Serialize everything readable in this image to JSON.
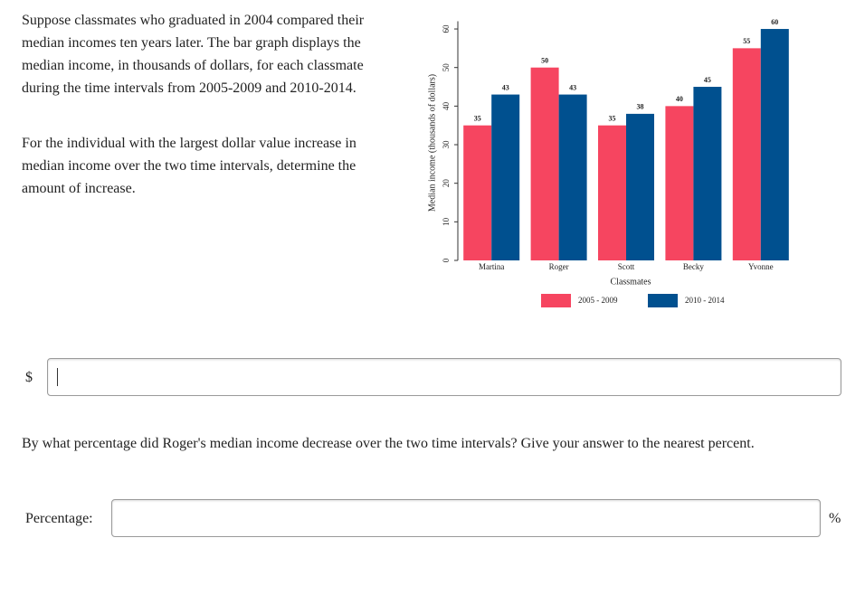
{
  "question1": {
    "paragraphs": [
      "Suppose classmates who graduated in 2004 compared their median incomes ten years later. The bar graph displays the median income, in thousands of dollars, for each classmate during the time intervals from 2005-2009 and 2010-2014.",
      "For the individual with the largest dollar value increase in median income over the two time intervals, determine the amount of increase."
    ],
    "answer_prefix": "$"
  },
  "chart_data": {
    "type": "bar",
    "x_label": "Classmates",
    "y_label": "Median income (thousands of dollars)",
    "categories": [
      "Martina",
      "Roger",
      "Scott",
      "Becky",
      "Yvonne"
    ],
    "series": [
      {
        "name": "2005 - 2009",
        "color": "#f64560",
        "values": [
          35,
          50,
          35,
          40,
          55
        ]
      },
      {
        "name": "2010 - 2014",
        "color": "#00508f",
        "values": [
          43,
          43,
          38,
          45,
          60
        ]
      }
    ],
    "ylim": [
      0,
      62
    ],
    "yticks": [
      0,
      10,
      20,
      30,
      40,
      50,
      60
    ]
  },
  "question2": {
    "text": "By what percentage did Roger's median income decrease over the two time intervals? Give your answer to the nearest percent.",
    "label": "Percentage:",
    "suffix": "%"
  }
}
